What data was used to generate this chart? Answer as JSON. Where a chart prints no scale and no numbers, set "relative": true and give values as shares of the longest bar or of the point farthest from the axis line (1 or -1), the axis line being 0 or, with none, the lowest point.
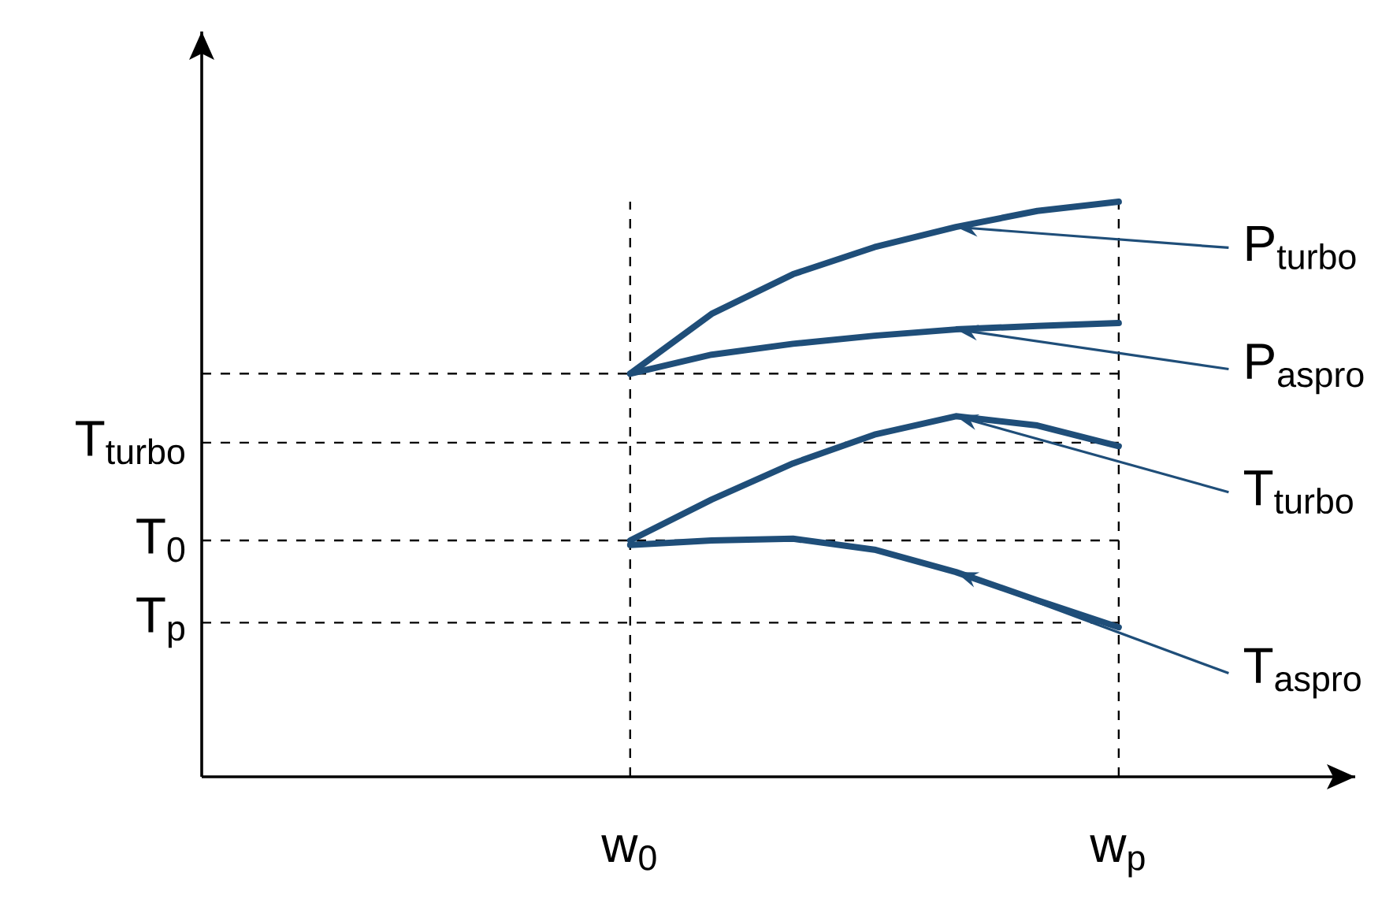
{
  "chart_data": {
    "type": "line",
    "relative": true,
    "marker": "none",
    "line_style": "solid",
    "grid": false,
    "categories": [
      "w$_{0}$",
      null,
      null,
      null,
      null,
      null,
      "w$_{p}$"
    ],
    "series": [
      {
        "name": "P$_{turbo}$",
        "color": "#1f4e79",
        "values": [
          0.701,
          0.805,
          0.874,
          0.921,
          0.956,
          0.984,
          1
        ]
      },
      {
        "name": "P$_{aspro}$",
        "color": "#1f4e79",
        "values": [
          0.701,
          0.734,
          0.753,
          0.767,
          0.778,
          0.784,
          0.789
        ]
      },
      {
        "name": "T$_{turbo}$",
        "color": "#1f4e79",
        "values": [
          0.411,
          0.482,
          0.545,
          0.595,
          0.627,
          0.611,
          0.575
        ]
      },
      {
        "name": "T$_{aspro}$",
        "color": "#1f4e79",
        "values": [
          0.403,
          0.411,
          0.414,
          0.395,
          0.356,
          0.307,
          0.26
        ]
      }
    ],
    "ref_lines": [
      {
        "axis": "y",
        "value": 0.701,
        "line_style": "dashed",
        "color": "#000000"
      },
      {
        "axis": "y",
        "value": 0.581,
        "label": "T$_{turbo}$",
        "line_style": "dashed",
        "color": "#000000"
      },
      {
        "axis": "y",
        "value": 0.411,
        "label": "T$_{0}$",
        "line_style": "dashed",
        "color": "#000000"
      },
      {
        "axis": "y",
        "value": 0.268,
        "label": "T$_{p}$",
        "line_style": "dashed",
        "color": "#000000"
      },
      {
        "axis": "x",
        "value": "w$_{0}$",
        "line_style": "dashed",
        "color": "#000000"
      },
      {
        "axis": "x",
        "value": "w$_{p}$",
        "line_style": "dashed",
        "color": "#000000"
      }
    ]
  }
}
